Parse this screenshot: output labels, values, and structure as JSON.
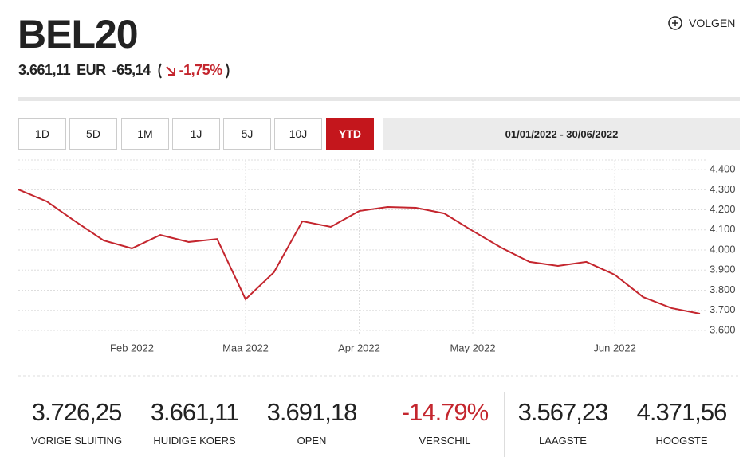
{
  "header": {
    "title": "BEL20",
    "price": "3.661,11",
    "currency": "EUR",
    "change": "-65,14",
    "change_pct": "-1,75%",
    "follow": "VOLGEN"
  },
  "ranges": [
    "1D",
    "5D",
    "1M",
    "1J",
    "5J",
    "10J",
    "YTD"
  ],
  "active_range": 6,
  "date_range": "01/01/2022 - 30/06/2022",
  "chart_data": {
    "type": "line",
    "categories": [
      null,
      null,
      null,
      null,
      "Feb 2022",
      null,
      null,
      null,
      "Maa 2022",
      null,
      null,
      null,
      "Apr 2022",
      null,
      null,
      null,
      "May 2022",
      null,
      null,
      null,
      null,
      "Jun 2022",
      null,
      null,
      null
    ],
    "values": [
      4301,
      4242,
      4143,
      4048,
      4008,
      4075,
      4040,
      4055,
      3755,
      3889,
      4143,
      4115,
      4194,
      4214,
      4210,
      4182,
      4095,
      4012,
      3941,
      3921,
      3941,
      3877,
      3766,
      3711,
      3683
    ],
    "color": "#c4262e",
    "ylim": [
      3580,
      4440
    ],
    "yticks": [
      {
        "value": 3600,
        "label": "3.600"
      },
      {
        "value": 3700,
        "label": "3.700"
      },
      {
        "value": 3800,
        "label": "3.800"
      },
      {
        "value": 3900,
        "label": "3.900"
      },
      {
        "value": 4000,
        "label": "4.000"
      },
      {
        "value": 4100,
        "label": "4.100"
      },
      {
        "value": 4200,
        "label": "4.200"
      },
      {
        "value": 4300,
        "label": "4.300"
      },
      {
        "value": 4400,
        "label": "4.400"
      }
    ],
    "grid": true
  },
  "stats": [
    {
      "value": "3.726,25",
      "label": "VORIGE SLUITING"
    },
    {
      "value": "3.661,11",
      "label": "HUIDIGE KOERS"
    },
    {
      "value": "3.691,18",
      "label": "OPEN"
    },
    {
      "value": "-14.79%",
      "label": "VERSCHIL",
      "color": "#c4262e"
    },
    {
      "value": "3.567,23",
      "label": "LAAGSTE"
    },
    {
      "value": "4.371,56",
      "label": "HOOGSTE"
    }
  ]
}
